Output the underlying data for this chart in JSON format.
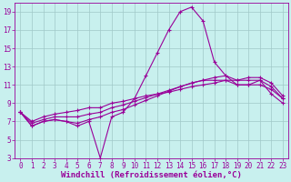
{
  "xlabel": "Windchill (Refroidissement éolien,°C)",
  "background_color": "#c8f0ee",
  "line_color": "#990099",
  "xlim": [
    -0.5,
    23.5
  ],
  "ylim": [
    3,
    20
  ],
  "xticks": [
    0,
    1,
    2,
    3,
    4,
    5,
    6,
    7,
    8,
    9,
    10,
    11,
    12,
    13,
    14,
    15,
    16,
    17,
    18,
    19,
    20,
    21,
    22,
    23
  ],
  "yticks": [
    3,
    5,
    7,
    9,
    11,
    13,
    15,
    17,
    19
  ],
  "grid_color": "#a0c8c8",
  "series": [
    [
      8.0,
      6.5,
      7.0,
      7.2,
      7.0,
      6.5,
      7.0,
      3.0,
      7.5,
      8.0,
      9.5,
      12.0,
      14.5,
      17.0,
      19.0,
      19.5,
      18.0,
      13.5,
      12.0,
      11.0,
      11.0,
      11.5,
      10.0,
      9.0
    ],
    [
      8.0,
      6.5,
      7.0,
      7.2,
      7.0,
      6.8,
      7.2,
      7.5,
      8.0,
      8.3,
      8.8,
      9.3,
      9.8,
      10.3,
      10.8,
      11.2,
      11.5,
      11.5,
      11.5,
      11.0,
      11.0,
      11.0,
      10.5,
      9.5
    ],
    [
      8.0,
      6.8,
      7.2,
      7.5,
      7.5,
      7.5,
      7.8,
      8.0,
      8.5,
      8.8,
      9.2,
      9.6,
      10.0,
      10.4,
      10.8,
      11.2,
      11.5,
      11.8,
      12.0,
      11.5,
      11.5,
      11.5,
      10.8,
      9.5
    ],
    [
      8.0,
      7.0,
      7.5,
      7.8,
      8.0,
      8.2,
      8.5,
      8.5,
      9.0,
      9.2,
      9.5,
      9.8,
      10.0,
      10.2,
      10.5,
      10.8,
      11.0,
      11.2,
      11.5,
      11.5,
      11.8,
      11.8,
      11.2,
      9.8
    ]
  ],
  "tick_fontsize": 5.5,
  "label_fontsize": 6.5,
  "markersize": 3.0,
  "linewidth": 0.8
}
